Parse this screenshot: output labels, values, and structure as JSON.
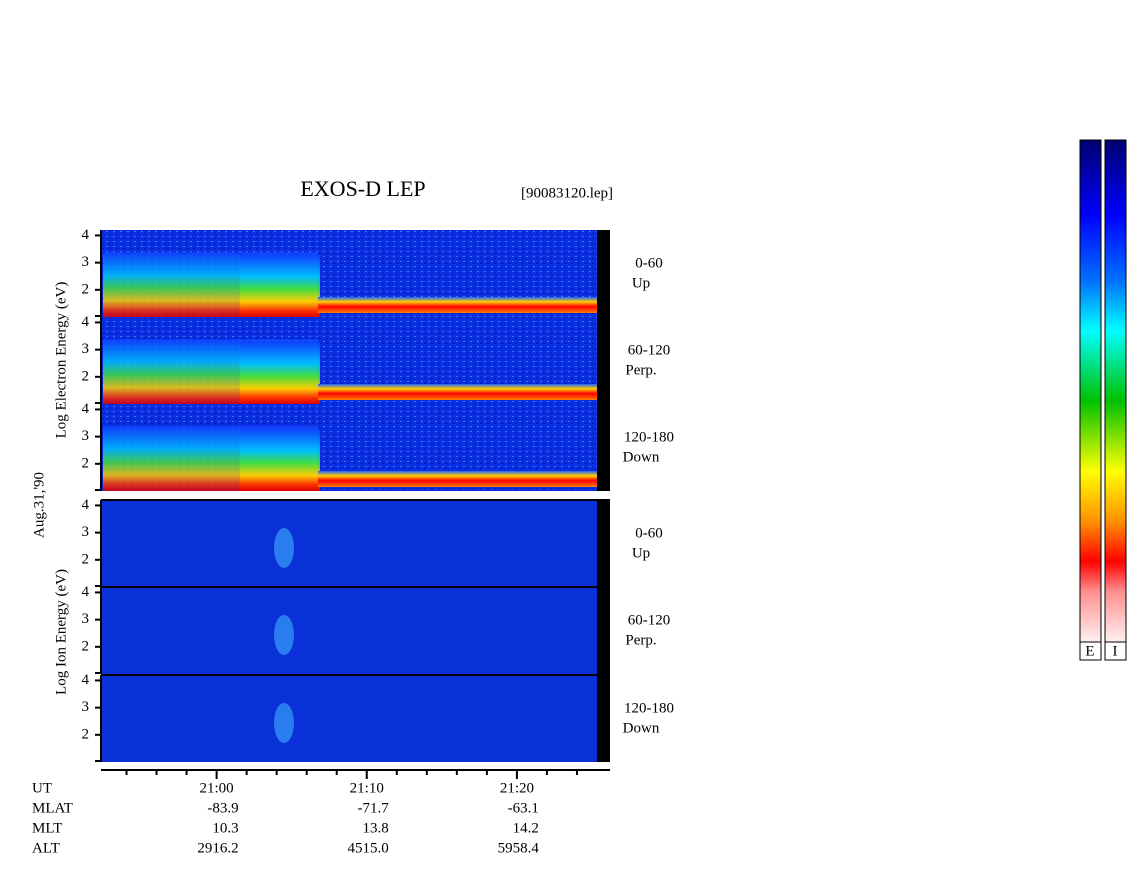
{
  "chart_data": {
    "type": "spectrogram",
    "title": "EXOS-D LEP",
    "file_name": "[90083120.lep]",
    "date": "Aug.31,'90",
    "electron_axis_label": "Log  Electron  Energy (eV)",
    "ion_axis_label": "Log  Ion  Energy (eV)",
    "panels": [
      {
        "species": "electron",
        "angle": "0-60",
        "direction": "Up"
      },
      {
        "species": "electron",
        "angle": "60-120",
        "direction": "Perp."
      },
      {
        "species": "electron",
        "angle": "120-180",
        "direction": "Down"
      },
      {
        "species": "ion",
        "angle": "0-60",
        "direction": "Up"
      },
      {
        "species": "ion",
        "angle": "60-120",
        "direction": "Perp."
      },
      {
        "species": "ion",
        "angle": "120-180",
        "direction": "Down"
      }
    ],
    "ylim": [
      1,
      4.2
    ],
    "yticks": [
      2,
      3,
      4
    ],
    "xlim": [
      1252.3,
      1286.2
    ],
    "xticks": [
      {
        "value": 1260,
        "label": "21:00"
      },
      {
        "value": 1270,
        "label": "21:10"
      },
      {
        "value": 1280,
        "label": "21:20"
      }
    ],
    "x_minor_ticks": [
      1254,
      1256,
      1258,
      1262,
      1264,
      1266,
      1268,
      1272,
      1274,
      1276,
      1278,
      1282,
      1284
    ],
    "ephemeris": {
      "labels": [
        "UT",
        "MLAT",
        "MLT",
        "ALT"
      ],
      "rows": [
        [
          "-83.9",
          "-71.7",
          "-63.1"
        ],
        [
          "10.3",
          "13.8",
          "14.2"
        ],
        [
          "2916.2",
          "4515.0",
          "5958.4"
        ]
      ]
    },
    "colorbar_labels": [
      "E",
      "I"
    ]
  }
}
